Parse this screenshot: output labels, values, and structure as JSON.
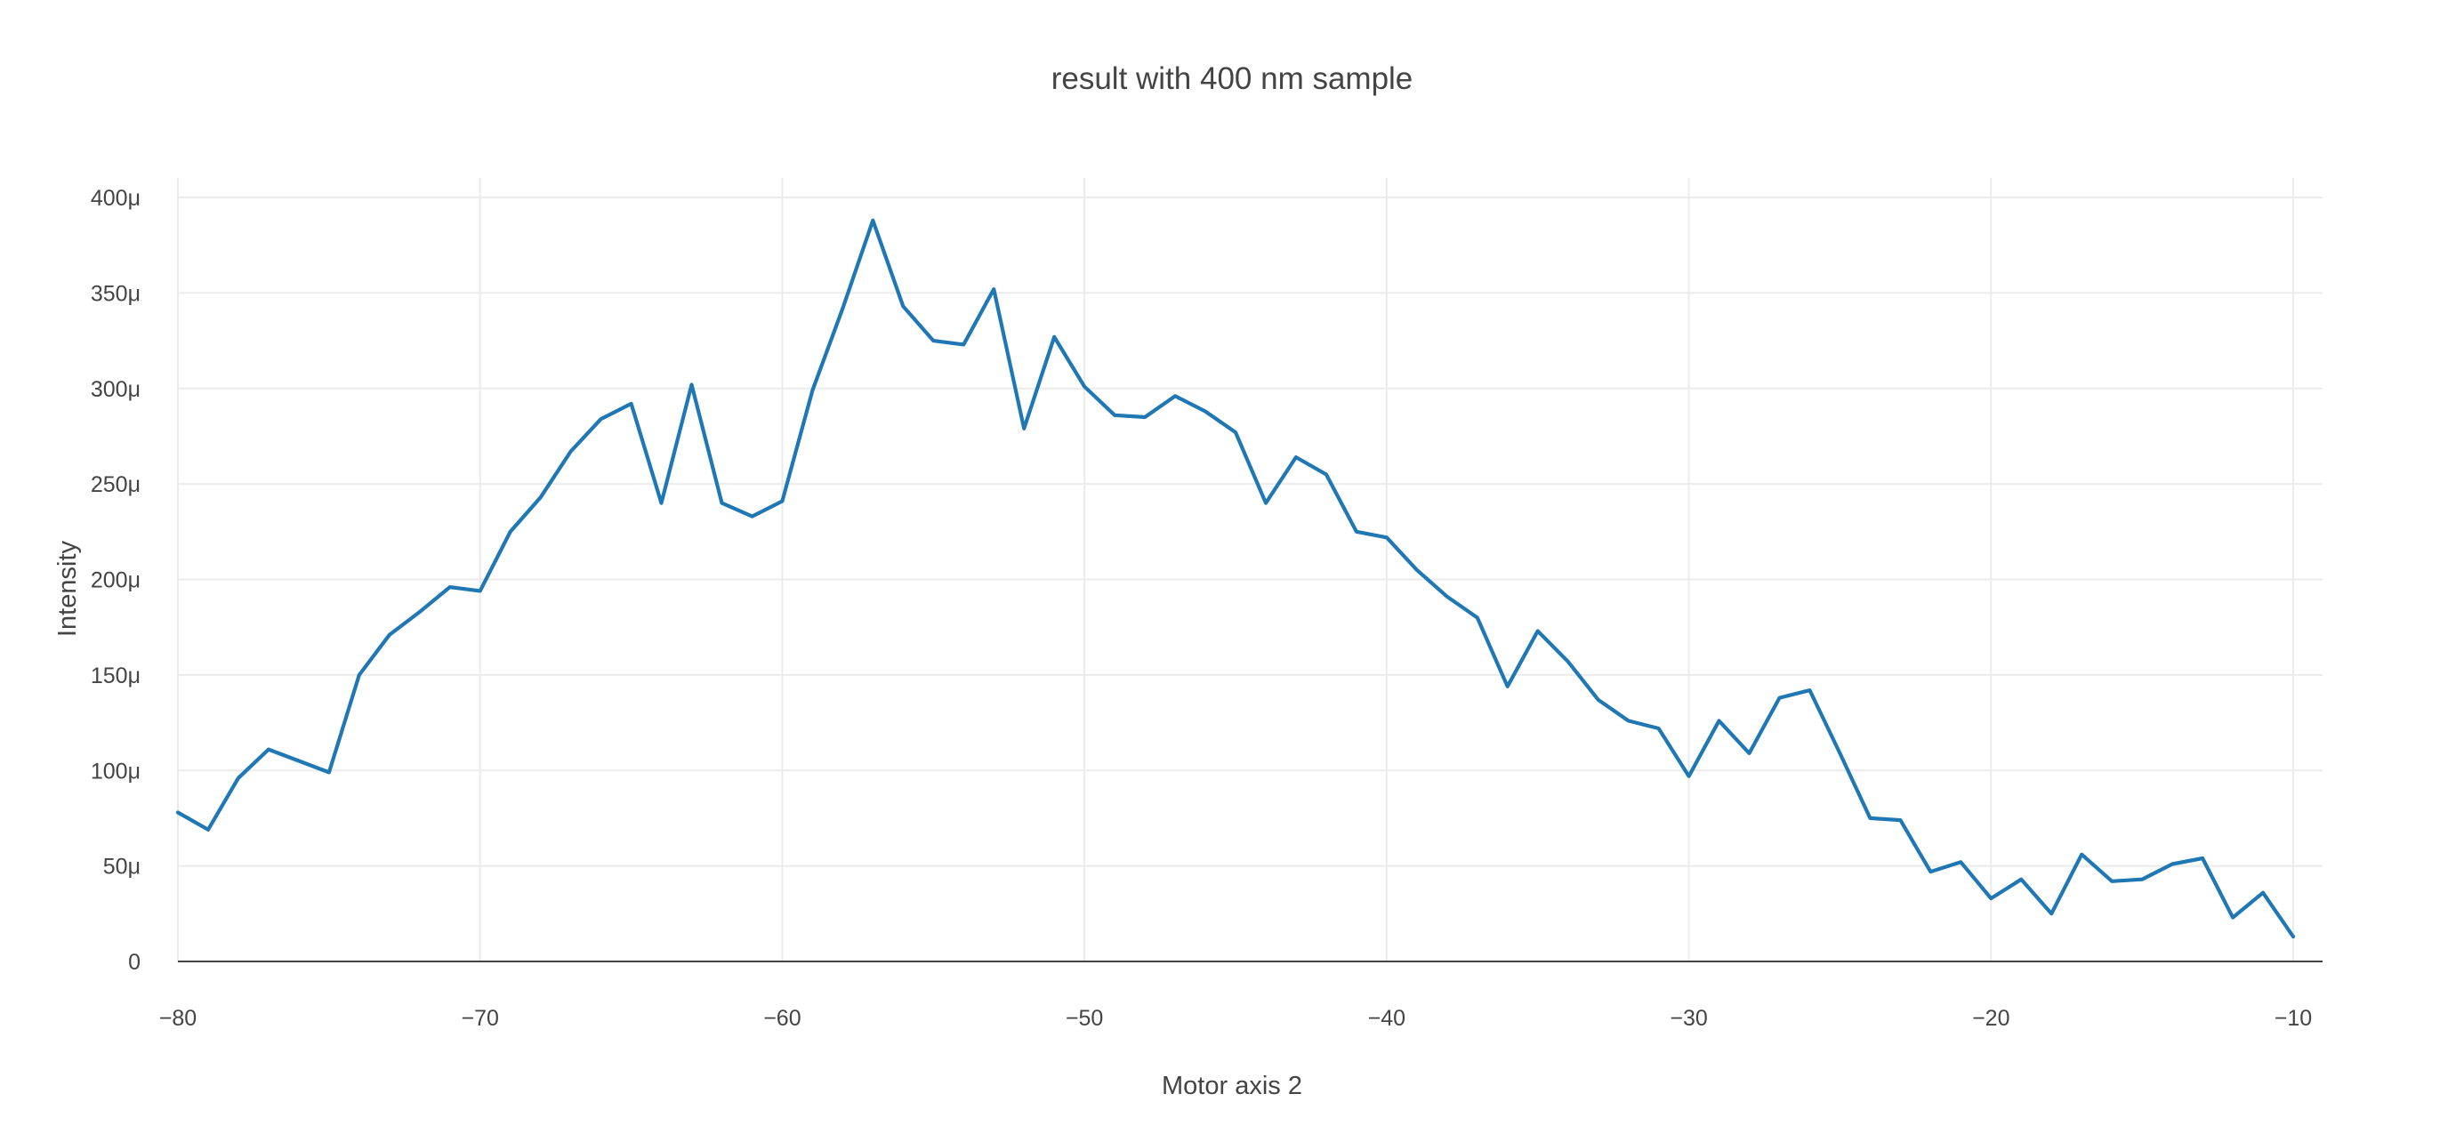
{
  "chart_data": {
    "type": "line",
    "title": "result with 400 nm sample",
    "xlabel": "Motor axis 2",
    "ylabel": "Intensity",
    "xlim": [
      -80,
      -10
    ],
    "ylim": [
      0,
      400
    ],
    "x_ticks": [
      -80,
      -70,
      -60,
      -50,
      -40,
      -30,
      -20,
      -10
    ],
    "x_tick_labels": [
      "−80",
      "−70",
      "−60",
      "−50",
      "−40",
      "−30",
      "−20",
      "−10"
    ],
    "y_ticks": [
      0,
      50,
      100,
      150,
      200,
      250,
      300,
      350,
      400
    ],
    "y_tick_labels": [
      "0",
      "50μ",
      "100μ",
      "150μ",
      "200μ",
      "250μ",
      "300μ",
      "350μ",
      "400μ"
    ],
    "y_unit_scale": "1e-6",
    "grid": true,
    "legend": "none",
    "colors": {
      "series": "#1f77b4",
      "grid": "#ebebeb",
      "zero_line": "#444444",
      "text": "#444444",
      "background": "#ffffff"
    },
    "x": [
      -80,
      -79,
      -78,
      -77,
      -76,
      -75,
      -74,
      -73,
      -72,
      -71,
      -70,
      -69,
      -68,
      -67,
      -66,
      -65,
      -64,
      -63,
      -62,
      -61,
      -60,
      -59,
      -58,
      -57,
      -56,
      -55,
      -54,
      -53,
      -52,
      -51,
      -50,
      -49,
      -48,
      -47,
      -46,
      -45,
      -44,
      -43,
      -42,
      -41,
      -40,
      -39,
      -38,
      -37,
      -36,
      -35,
      -34,
      -33,
      -32,
      -31,
      -30,
      -29,
      -28,
      -27,
      -26,
      -25,
      -24,
      -23,
      -22,
      -21,
      -20,
      -19,
      -18,
      -17,
      -16,
      -15,
      -14,
      -13,
      -12,
      -11,
      -10
    ],
    "series": [
      {
        "values": [
          78,
          69,
          96,
          111,
          105,
          99,
          150,
          171,
          183,
          196,
          194,
          225,
          243,
          267,
          284,
          292,
          240,
          302,
          240,
          233,
          241,
          299,
          342,
          388,
          343,
          325,
          323,
          352,
          279,
          327,
          301,
          286,
          285,
          296,
          288,
          277,
          240,
          264,
          255,
          225,
          222,
          205,
          191,
          180,
          144,
          173,
          157,
          137,
          126,
          122,
          97,
          126,
          109,
          138,
          142,
          109,
          75,
          74,
          47,
          52,
          33,
          43,
          25,
          56,
          42,
          43,
          51,
          54,
          23,
          36,
          13
        ]
      }
    ]
  }
}
